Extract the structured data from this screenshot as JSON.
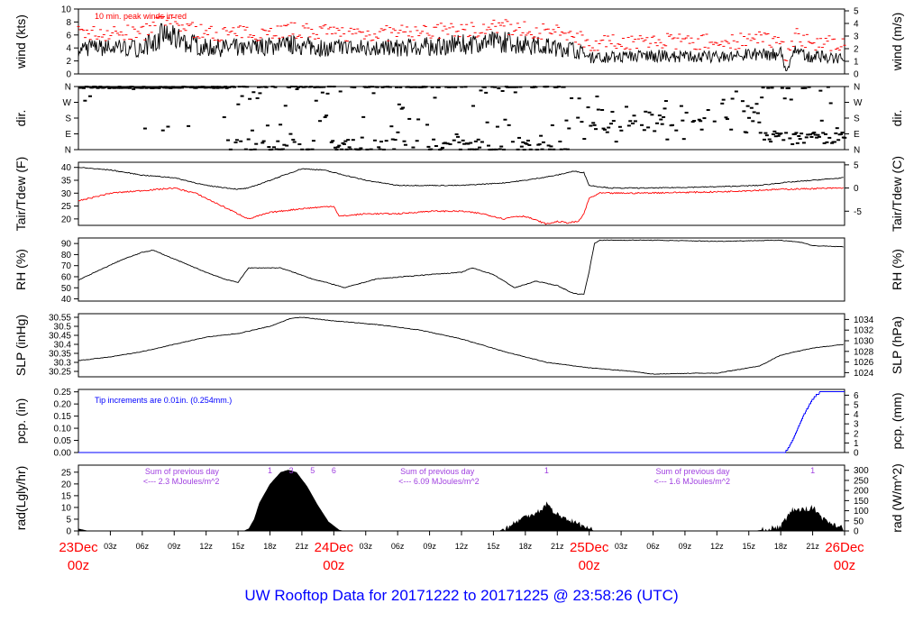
{
  "chart_data": {
    "type": "line",
    "title": "UW Rooftop Data for 20171222  to  20171225 @ 23:58:26  (UTC)",
    "x_unit": "hours since 23Dec 00z",
    "xlim": [
      0,
      72
    ],
    "x_ticks": [
      {
        "h": 0,
        "label": "23Dec",
        "sub": "00z",
        "major": true
      },
      {
        "h": 3,
        "label": "03z"
      },
      {
        "h": 6,
        "label": "06z"
      },
      {
        "h": 9,
        "label": "09z"
      },
      {
        "h": 12,
        "label": "12z"
      },
      {
        "h": 15,
        "label": "15z"
      },
      {
        "h": 18,
        "label": "18z"
      },
      {
        "h": 21,
        "label": "21z"
      },
      {
        "h": 24,
        "label": "24Dec",
        "sub": "00z",
        "major": true
      },
      {
        "h": 27,
        "label": "03z"
      },
      {
        "h": 30,
        "label": "06z"
      },
      {
        "h": 33,
        "label": "09z"
      },
      {
        "h": 36,
        "label": "12z"
      },
      {
        "h": 39,
        "label": "15z"
      },
      {
        "h": 42,
        "label": "18z"
      },
      {
        "h": 45,
        "label": "21z"
      },
      {
        "h": 48,
        "label": "25Dec",
        "sub": "00z",
        "major": true
      },
      {
        "h": 51,
        "label": "03z"
      },
      {
        "h": 54,
        "label": "06z"
      },
      {
        "h": 57,
        "label": "09z"
      },
      {
        "h": 60,
        "label": "12z"
      },
      {
        "h": 63,
        "label": "15z"
      },
      {
        "h": 66,
        "label": "18z"
      },
      {
        "h": 69,
        "label": "21z"
      },
      {
        "h": 72,
        "label": "26Dec",
        "sub": "00z",
        "major": true
      }
    ],
    "panels": [
      {
        "id": "wind",
        "ylabel": "wind (kts)",
        "ylabel_right": "wind (m/s)",
        "ylim": [
          0,
          10
        ],
        "yticks": [
          0,
          2,
          4,
          6,
          8,
          10
        ],
        "right_ticks": [
          {
            "v": 0,
            "label": "0"
          },
          {
            "v": 1.944,
            "label": "1"
          },
          {
            "v": 3.888,
            "label": "2"
          },
          {
            "v": 5.832,
            "label": "3"
          },
          {
            "v": 7.776,
            "label": "4"
          },
          {
            "v": 9.72,
            "label": "5"
          }
        ],
        "annotation": "10 min. peak winds in red",
        "series": [
          {
            "name": "mean wind",
            "color": "#000000",
            "x": [
              0,
              6,
              8,
              10,
              12,
              16,
              20,
              24,
              30,
              36,
              40,
              44,
              46,
              47,
              48,
              54,
              60,
              64,
              66,
              66.5,
              67.5,
              68,
              72
            ],
            "y": [
              4,
              4,
              6,
              5,
              4,
              4,
              4.5,
              4,
              4,
              4.5,
              5,
              4.2,
              4,
              3.5,
              2.5,
              2.8,
              2.6,
              3,
              3.2,
              0.3,
              4,
              2.8,
              2.4
            ]
          },
          {
            "name": "peak wind",
            "color": "#ff0000",
            "offset": 1.8
          }
        ]
      },
      {
        "id": "dir",
        "ylabel": "dir.",
        "ylabel_right": "dir.",
        "ylim": [
          0,
          360
        ],
        "ytick_labels": [
          "N",
          "E",
          "S",
          "W",
          "N"
        ]
      },
      {
        "id": "temp",
        "ylabel": "Tair/Tdew (F)",
        "ylabel_right": "Tair/Tdew (C)",
        "ylim": [
          17.5,
          42
        ],
        "yticks": [
          20,
          25,
          30,
          35,
          40
        ],
        "right_ticks": [
          {
            "v": 23,
            "label": "-5"
          },
          {
            "v": 32,
            "label": "0"
          },
          {
            "v": 41,
            "label": "5"
          }
        ],
        "series": [
          {
            "name": "Tair",
            "color": "#000000",
            "x": [
              0,
              3,
              6,
              9,
              12,
              15,
              16,
              18,
              20,
              21,
              23,
              24,
              27,
              30,
              33,
              36,
              40,
              42,
              45,
              46.5,
              47.5,
              48,
              50,
              54,
              60,
              64,
              66,
              69,
              72
            ],
            "y": [
              40,
              39,
              37,
              36,
              33,
              31.5,
              32,
              35,
              38,
              39.5,
              39,
              38,
              35,
              33,
              33,
              33,
              34,
              35,
              37,
              38.5,
              38,
              33,
              32,
              32,
              32.5,
              33,
              34,
              35,
              36
            ]
          },
          {
            "name": "Tdew",
            "color": "#ff0000",
            "x": [
              0,
              3,
              6,
              9,
              11,
              13,
              15,
              16,
              18,
              21,
              24,
              24.5,
              27,
              30,
              33,
              36,
              38,
              40,
              41,
              42,
              44,
              45,
              46,
              47,
              47.5,
              48,
              49,
              52,
              60,
              66,
              72
            ],
            "y": [
              27,
              30,
              31,
              32,
              30,
              26,
              22,
              20,
              22.5,
              24,
              25,
              21,
              22,
              22,
              23,
              23,
              22,
              20,
              21,
              21,
              18,
              19,
              18.5,
              19,
              22,
              28,
              30,
              30,
              30.5,
              31.5,
              32
            ]
          }
        ]
      },
      {
        "id": "rh",
        "ylabel": "RH (%)",
        "ylabel_right": "RH (%)",
        "ylim": [
          38,
          95
        ],
        "yticks": [
          40,
          50,
          60,
          70,
          80,
          90
        ],
        "series": [
          {
            "name": "RH",
            "color": "#000000",
            "x": [
              0,
              2,
              4,
              6,
              7,
              8,
              10,
              12,
              14,
              15,
              16,
              19,
              22,
              24,
              25,
              28,
              33,
              36,
              37,
              39,
              41,
              43,
              45,
              46.5,
              47.5,
              48,
              48.5,
              49,
              54,
              60,
              66,
              68,
              69,
              72
            ],
            "y": [
              57,
              66,
              75,
              82,
              84,
              80,
              72,
              64,
              57,
              55,
              68,
              68,
              58,
              53,
              50,
              58,
              62,
              64,
              68,
              62,
              50,
              56,
              52,
              45,
              44,
              65,
              90,
              93,
              93,
              92,
              93,
              91,
              88,
              87
            ]
          }
        ]
      },
      {
        "id": "slp",
        "ylabel": "SLP (inHg)",
        "ylabel_right": "SLP (hPa)",
        "ylim": [
          30.22,
          30.57
        ],
        "yticks": [
          30.25,
          30.3,
          30.35,
          30.4,
          30.45,
          30.5,
          30.55
        ],
        "right_ticks": [
          {
            "v": 30.243,
            "label": "1024"
          },
          {
            "v": 30.302,
            "label": "1026"
          },
          {
            "v": 30.361,
            "label": "1028"
          },
          {
            "v": 30.42,
            "label": "1030"
          },
          {
            "v": 30.479,
            "label": "1032"
          },
          {
            "v": 30.538,
            "label": "1034"
          }
        ],
        "series": [
          {
            "name": "SLP",
            "color": "#000000",
            "x": [
              0,
              3,
              6,
              9,
              12,
              15,
              18,
              20,
              21,
              24,
              28,
              32,
              36,
              40,
              44,
              48,
              52,
              54,
              58,
              60,
              64,
              66,
              69,
              72
            ],
            "y": [
              30.31,
              30.33,
              30.36,
              30.4,
              30.44,
              30.46,
              30.5,
              30.545,
              30.55,
              30.53,
              30.51,
              30.48,
              30.43,
              30.36,
              30.3,
              30.27,
              30.25,
              30.235,
              30.24,
              30.24,
              30.28,
              30.34,
              30.38,
              30.4
            ]
          }
        ]
      },
      {
        "id": "pcp",
        "ylabel": "pcp. (in)",
        "ylabel_right": "pcp. (mm)",
        "ylim": [
          0,
          0.26
        ],
        "yticks": [
          0,
          0.05,
          0.1,
          0.15,
          0.2,
          0.25
        ],
        "ytick_labels": [
          "0.00",
          "0.05",
          "0.10",
          "0.15",
          "0.20",
          "0.25"
        ],
        "right_ticks": [
          {
            "v": 0,
            "label": "0"
          },
          {
            "v": 0.03937,
            "label": "1"
          },
          {
            "v": 0.07874,
            "label": "2"
          },
          {
            "v": 0.1181,
            "label": "3"
          },
          {
            "v": 0.1575,
            "label": "4"
          },
          {
            "v": 0.1968,
            "label": "5"
          },
          {
            "v": 0.2362,
            "label": "6"
          }
        ],
        "annotation": "Tip increments are 0.01in. (0.254mm.)",
        "series": [
          {
            "name": "cumulative precip",
            "color": "#0000ff",
            "x": [
              0,
              66.3,
              66.6,
              67,
              67.5,
              68,
              68.5,
              69,
              69.4,
              69.8,
              72
            ],
            "y": [
              0,
              0,
              0.01,
              0.04,
              0.09,
              0.14,
              0.18,
              0.22,
              0.24,
              0.25,
              0.25
            ]
          }
        ]
      },
      {
        "id": "rad",
        "ylabel": "rad(Lgly/hr)",
        "ylabel_right": "rad (W/m^2)",
        "ylim": [
          0,
          28
        ],
        "yticks": [
          0,
          5,
          10,
          15,
          20,
          25
        ],
        "right_ticks": [
          {
            "v": 0,
            "label": "0"
          },
          {
            "v": 4.3,
            "label": "50"
          },
          {
            "v": 8.6,
            "label": "100"
          },
          {
            "v": 12.9,
            "label": "150"
          },
          {
            "v": 17.2,
            "label": "200"
          },
          {
            "v": 21.5,
            "label": "250"
          },
          {
            "v": 25.8,
            "label": "300"
          }
        ],
        "series": [
          {
            "name": "solar radiation",
            "color": "#000000",
            "x": [
              0,
              0.5,
              1,
              15.5,
              16,
              16.5,
              17,
              18,
              19,
              19.7,
              20.5,
              21.5,
              22.5,
              23.5,
              24.5,
              25,
              39.5,
              40.5,
              41.5,
              42.5,
              43.5,
              44,
              44.3,
              45,
              46,
              47,
              48,
              48.5,
              63.5,
              65,
              66,
              66.5,
              67,
              68,
              69,
              69.5,
              70,
              71,
              72
            ],
            "y": [
              1,
              0.5,
              0,
              0,
              1,
              5,
              12,
              20,
              25,
              26,
              25,
              19,
              11,
              4,
              0.5,
              0,
              0,
              2,
              5,
              7,
              9,
              12,
              10,
              7,
              5,
              3,
              1,
              0,
              0,
              1,
              2,
              5,
              9,
              9,
              10,
              8,
              5,
              3,
              1
            ]
          }
        ],
        "annotations": [
          {
            "h": 6,
            "line1": "Sum of previous day",
            "line2": "<--- 2.3 MJoules/m^2"
          },
          {
            "h": 30,
            "line1": "Sum of previous day",
            "line2": "<--- 6.09 MJoules/m^2"
          },
          {
            "h": 54,
            "line1": "Sum of previous day",
            "line2": "<--- 1.6 MJoules/m^2"
          }
        ],
        "markers": [
          {
            "h": 18,
            "label": "1"
          },
          {
            "h": 20,
            "label": "3"
          },
          {
            "h": 22,
            "label": "5"
          },
          {
            "h": 24,
            "label": "6"
          },
          {
            "h": 44,
            "label": "1"
          },
          {
            "h": 69,
            "label": "1"
          }
        ]
      }
    ]
  }
}
